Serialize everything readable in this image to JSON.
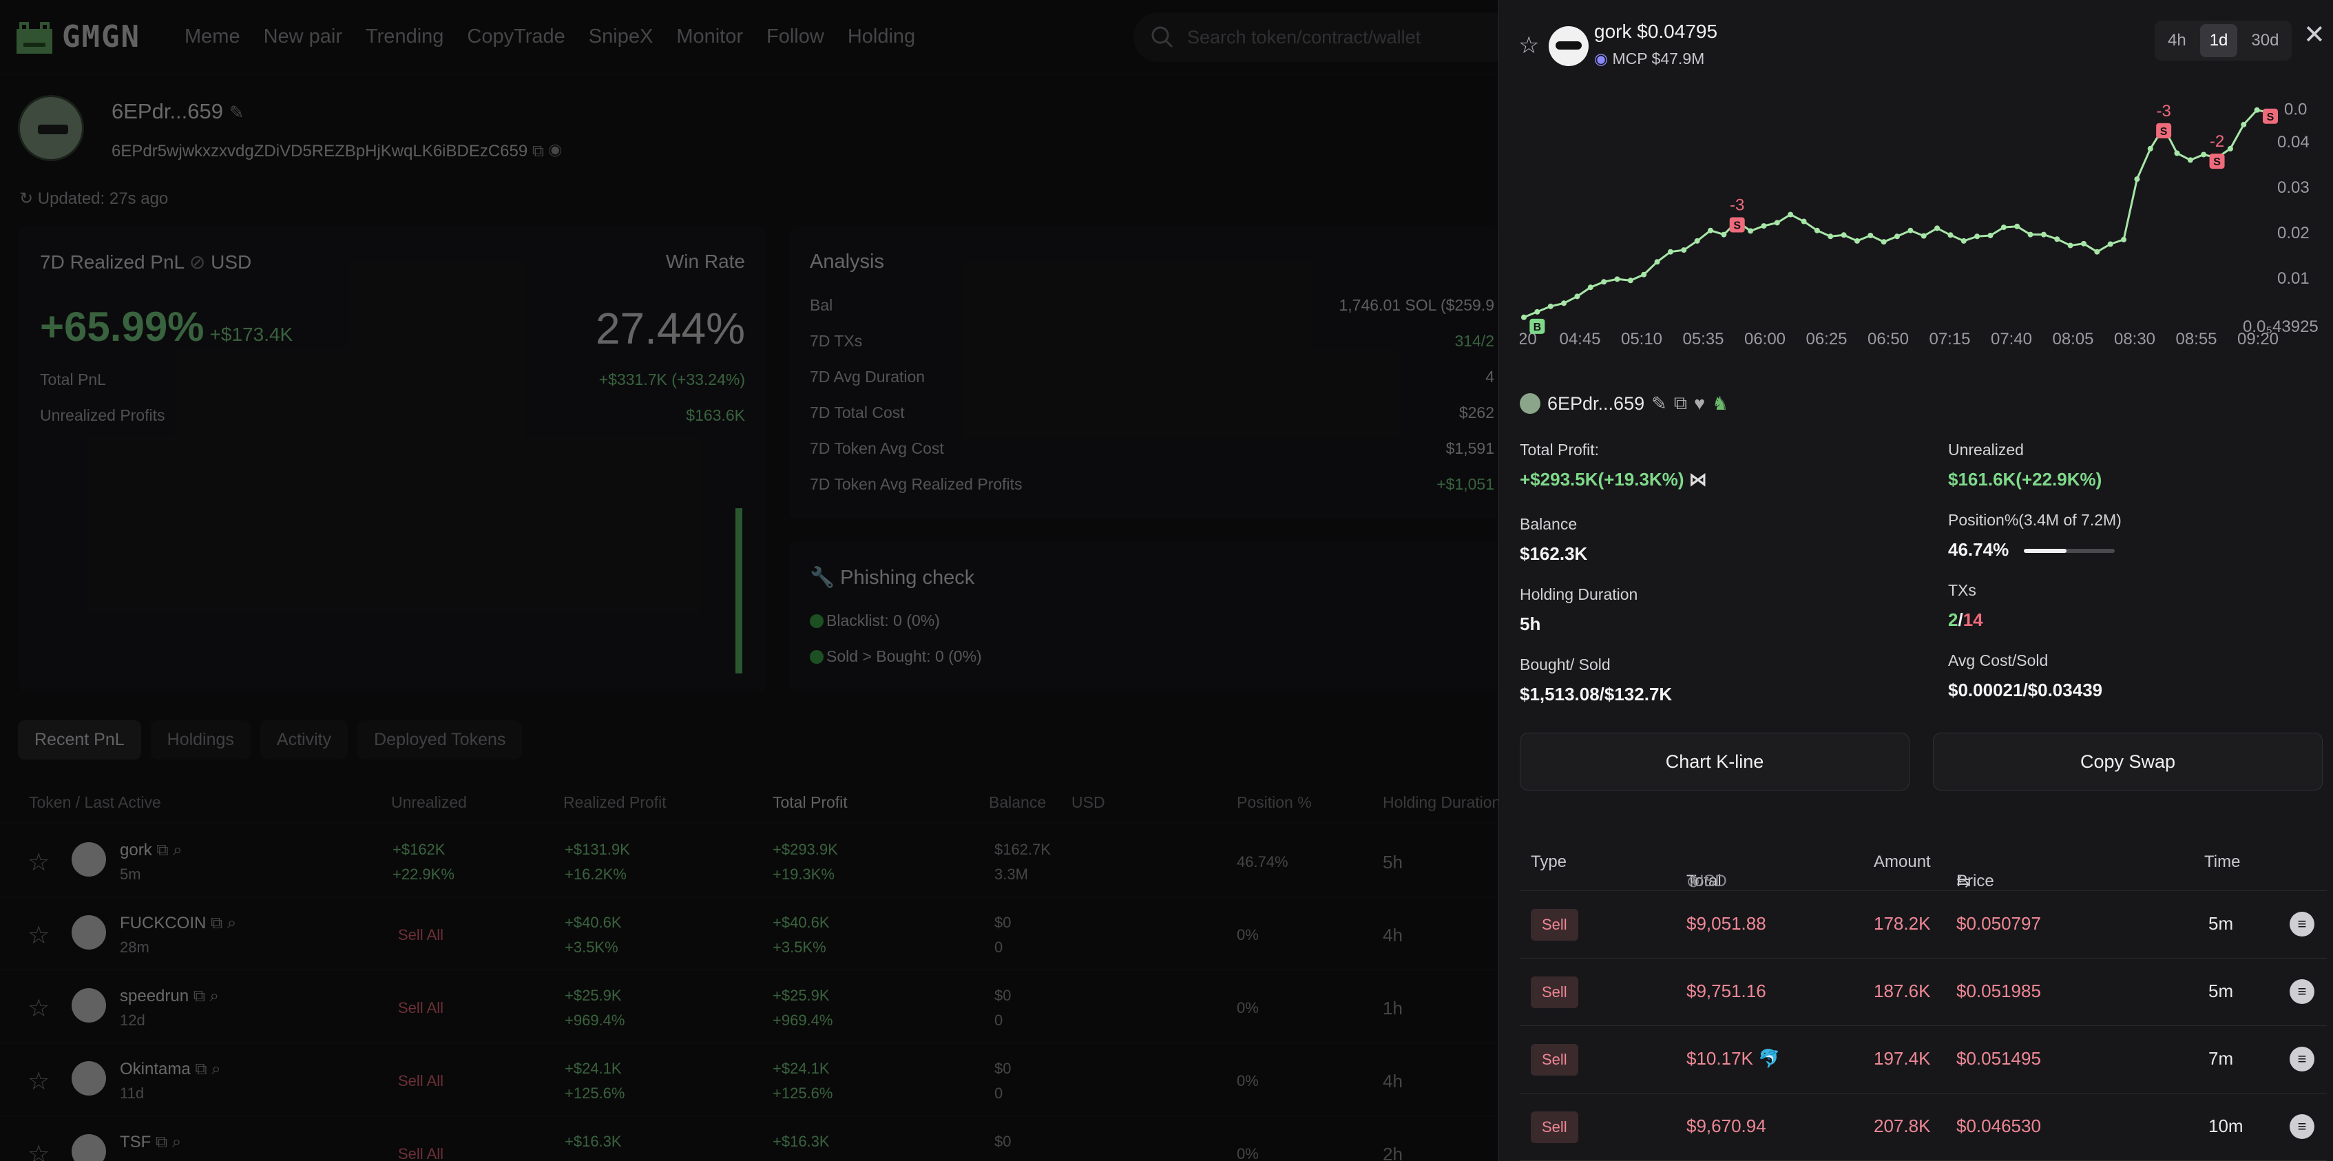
{
  "nav": {
    "logo": "GMGN",
    "items": [
      "Meme",
      "New pair",
      "Trending",
      "CopyTrade",
      "SnipeX",
      "Monitor",
      "Follow",
      "Holding"
    ],
    "search_placeholder": "Search token/contract/wallet"
  },
  "profile": {
    "wallet_short": "6EPdr...659",
    "wallet_full": "6EPdr5wjwkxzxvdgZDiVD5REZBpHjKwqLK6iBDEzC659",
    "updated": "Updated: 27s ago"
  },
  "pnl": {
    "title": "7D Realized PnL",
    "currency": "USD",
    "winrate_label": "Win Rate",
    "pct": "+65.99%",
    "usd": "+$173.4K",
    "winrate": "27.44%",
    "total_pnl_label": "Total PnL",
    "total_pnl": "+$331.7K (+33.24%)",
    "unrealized_label": "Unrealized Profits",
    "unrealized": "$163.6K"
  },
  "analysis": {
    "title": "Analysis",
    "rows": [
      {
        "k": "Bal",
        "v": "1,746.01 SOL ($259.9"
      },
      {
        "k": "7D TXs",
        "v": "314/2"
      },
      {
        "k": "7D Avg Duration",
        "v": "4"
      },
      {
        "k": "7D Total Cost",
        "v": "$262"
      },
      {
        "k": "7D Token Avg Cost",
        "v": "$1,591"
      },
      {
        "k": "7D Token Avg Realized Profits",
        "v": "+$1,051"
      }
    ]
  },
  "phishing": {
    "title": "Phishing check",
    "blacklist_label": "Blacklist:",
    "blacklist": "0 (0%)",
    "sold_label": "Sold > Bought:",
    "sold": "0 (0%)"
  },
  "tabs": [
    "Recent PnL",
    "Holdings",
    "Activity",
    "Deployed Tokens"
  ],
  "table": {
    "headers": [
      "Token / Last Active",
      "Unrealized",
      "Realized Profit",
      "Total Profit",
      "Balance",
      "USD",
      "Position %",
      "Holding Duration"
    ],
    "rows": [
      {
        "name": "gork",
        "age": "5m",
        "unreal1": "+$162K",
        "unreal2": "+22.9K%",
        "real1": "+$131.9K",
        "real2": "+16.2K%",
        "tot1": "+$293.9K",
        "tot2": "+19.3K%",
        "bal1": "$162.7K",
        "bal2": "3.3M",
        "pos": "46.74%",
        "dur": "5h"
      },
      {
        "name": "FUCKCOIN",
        "age": "28m",
        "unreal1": "Sell All",
        "unreal2": "",
        "real1": "+$40.6K",
        "real2": "+3.5K%",
        "tot1": "+$40.6K",
        "tot2": "+3.5K%",
        "bal1": "$0",
        "bal2": "0",
        "pos": "0%",
        "dur": "4h"
      },
      {
        "name": "speedrun",
        "age": "12d",
        "unreal1": "Sell All",
        "unreal2": "",
        "real1": "+$25.9K",
        "real2": "+969.4%",
        "tot1": "+$25.9K",
        "tot2": "+969.4%",
        "bal1": "$0",
        "bal2": "0",
        "pos": "0%",
        "dur": "1h"
      },
      {
        "name": "Okintama",
        "age": "11d",
        "unreal1": "Sell All",
        "unreal2": "",
        "real1": "+$24.1K",
        "real2": "+125.6%",
        "tot1": "+$24.1K",
        "tot2": "+125.6%",
        "bal1": "$0",
        "bal2": "0",
        "pos": "0%",
        "dur": "4h"
      },
      {
        "name": "TSF",
        "age": "",
        "unreal1": "Sell All",
        "unreal2": "",
        "real1": "+$16.3K",
        "real2": "",
        "tot1": "+$16.3K",
        "tot2": "",
        "bal1": "$0",
        "bal2": "",
        "pos": "0%",
        "dur": "2h"
      }
    ]
  },
  "panel": {
    "token_name": "gork",
    "token_price": "$0.04795",
    "mcp": "MCP $47.9M",
    "ranges": [
      "4h",
      "1d",
      "30d"
    ],
    "active_range": "1d",
    "wallet_short": "6EPdr...659",
    "stats": {
      "total_profit_label": "Total Profit:",
      "total_profit": "+$293.5K(+19.3K%)",
      "unrealized_label": "Unrealized",
      "unrealized": "$161.6K(+22.9K%)",
      "balance_label": "Balance",
      "balance": "$162.3K",
      "position_label": "Position%(3.4M of 7.2M)",
      "position": "46.74%",
      "position_fraction": 0.4674,
      "holding_label": "Holding Duration",
      "holding": "5h",
      "txs_label": "TXs",
      "txs_buy": "2",
      "txs_sell": "14",
      "bought_sold_label": "Bought/ Sold",
      "bought_sold": "$1,513.08/$132.7K",
      "avg_label": "Avg Cost/Sold",
      "avg": "$0.00021/$0.03439"
    },
    "buttons": {
      "kline": "Chart K-line",
      "copy": "Copy Swap"
    },
    "trades_headers": {
      "type": "Type",
      "total": "Total",
      "usd": "USD",
      "amount": "Amount",
      "price": "Price",
      "time": "Time"
    },
    "trades": [
      {
        "type": "Sell",
        "total": "$9,051.88",
        "amount": "178.2K",
        "price": "$0.050797",
        "time": "5m"
      },
      {
        "type": "Sell",
        "total": "$9,751.16",
        "amount": "187.6K",
        "price": "$0.051985",
        "time": "5m"
      },
      {
        "type": "Sell",
        "total": "$10.17K",
        "amount": "197.4K",
        "price": "$0.051495",
        "time": "7m"
      },
      {
        "type": "Sell",
        "total": "$9,670.94",
        "amount": "207.8K",
        "price": "$0.046530",
        "time": "10m"
      }
    ]
  },
  "chart_data": {
    "type": "line",
    "x_ticks": [
      "20",
      "04:45",
      "05:10",
      "05:35",
      "06:00",
      "06:25",
      "06:50",
      "07:15",
      "07:40",
      "08:05",
      "08:30",
      "08:55",
      "09:20"
    ],
    "y_ticks": [
      "0.04",
      "0.03",
      "0.02",
      "0.01",
      "0.0₅43925"
    ],
    "y_top_label": "0.0",
    "series": [
      {
        "values": [
          0.0014,
          0.0026,
          0.0038,
          0.0045,
          0.006,
          0.008,
          0.0092,
          0.0098,
          0.0095,
          0.0108,
          0.0136,
          0.0158,
          0.0162,
          0.0182,
          0.0205,
          0.0196,
          0.0225,
          0.0204,
          0.0215,
          0.0222,
          0.024,
          0.0225,
          0.0205,
          0.0192,
          0.0195,
          0.0182,
          0.0194,
          0.018,
          0.0192,
          0.0205,
          0.0193,
          0.021,
          0.0195,
          0.0182,
          0.0192,
          0.0194,
          0.0212,
          0.0214,
          0.0196,
          0.0196,
          0.0186,
          0.0172,
          0.0176,
          0.0158,
          0.0175,
          0.0185,
          0.0318,
          0.0385,
          0.0432,
          0.0375,
          0.036,
          0.0372,
          0.0365,
          0.0385,
          0.0438,
          0.047,
          0.0464
        ]
      }
    ],
    "markers": [
      {
        "label": "B",
        "kind": "buy",
        "index": 1
      },
      {
        "label": "S",
        "kind": "sell",
        "index": 16,
        "count": "-3"
      },
      {
        "label": "S",
        "kind": "sell",
        "index": 48,
        "count": "-3"
      },
      {
        "label": "S",
        "kind": "sell",
        "index": 52,
        "count": "-2"
      },
      {
        "label": "S",
        "kind": "sell",
        "index": 56,
        "count": ""
      }
    ],
    "ylim": [
      0,
      0.05
    ]
  }
}
